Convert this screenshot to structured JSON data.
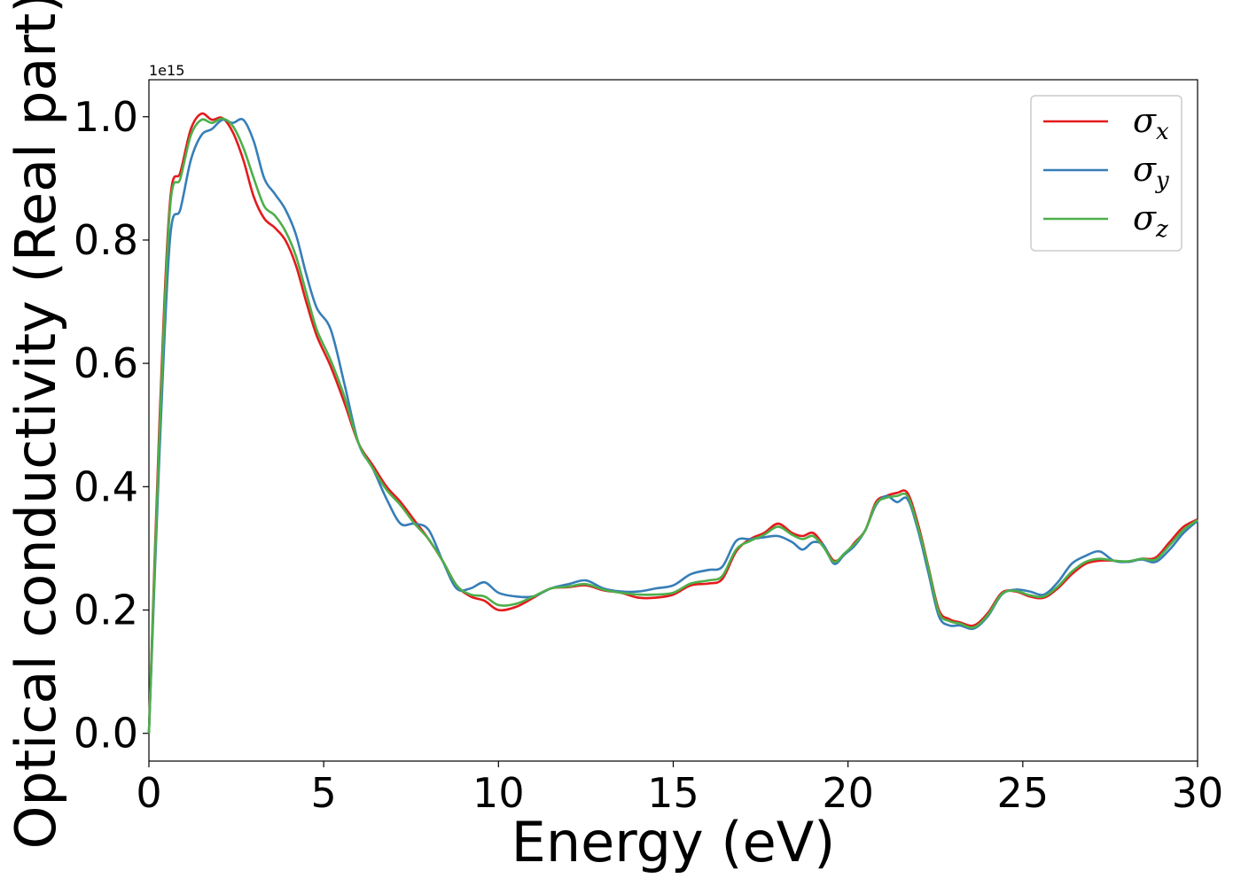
{
  "chart_data": {
    "type": "line",
    "title": "",
    "xlabel": "Energy (eV)",
    "ylabel": "Optical conductivity (Real part)",
    "y_offset_label": "1e15",
    "xlim": [
      0,
      30
    ],
    "ylim": [
      -0.045,
      1.06
    ],
    "x_ticks": [
      "0",
      "5",
      "10",
      "15",
      "20",
      "25",
      "30"
    ],
    "y_ticks": [
      "0.0",
      "0.2",
      "0.4",
      "0.6",
      "0.8",
      "1.0"
    ],
    "grid": false,
    "legend_position": "top-right",
    "x": [
      0,
      0.3,
      0.6,
      0.9,
      1.2,
      1.5,
      1.8,
      2.1,
      2.4,
      2.7,
      3.0,
      3.3,
      3.6,
      3.9,
      4.2,
      4.5,
      4.8,
      5.2,
      5.6,
      6.0,
      6.4,
      6.8,
      7.2,
      7.6,
      8.0,
      8.4,
      8.8,
      9.2,
      9.6,
      10.0,
      10.5,
      11.0,
      11.5,
      12.0,
      12.5,
      13.0,
      13.5,
      14.0,
      14.5,
      15.0,
      15.5,
      16.0,
      16.4,
      16.8,
      17.2,
      17.6,
      18.0,
      18.4,
      18.7,
      19.0,
      19.3,
      19.6,
      19.9,
      20.2,
      20.5,
      20.8,
      21.1,
      21.4,
      21.7,
      22.0,
      22.3,
      22.6,
      22.9,
      23.2,
      23.6,
      24.0,
      24.4,
      24.8,
      25.2,
      25.6,
      26.0,
      26.4,
      26.8,
      27.2,
      27.6,
      28.0,
      28.4,
      28.8,
      29.2,
      29.6,
      30.0
    ],
    "series": [
      {
        "name": "σx",
        "color": "#e41a1c",
        "values": [
          0.0,
          0.5,
          0.86,
          0.91,
          0.98,
          1.005,
          0.995,
          0.998,
          0.975,
          0.93,
          0.87,
          0.835,
          0.82,
          0.8,
          0.76,
          0.7,
          0.645,
          0.595,
          0.535,
          0.47,
          0.435,
          0.4,
          0.375,
          0.345,
          0.315,
          0.28,
          0.24,
          0.222,
          0.215,
          0.2,
          0.205,
          0.22,
          0.235,
          0.237,
          0.24,
          0.232,
          0.228,
          0.22,
          0.22,
          0.225,
          0.24,
          0.243,
          0.25,
          0.295,
          0.315,
          0.325,
          0.34,
          0.325,
          0.32,
          0.325,
          0.305,
          0.28,
          0.29,
          0.31,
          0.33,
          0.375,
          0.385,
          0.39,
          0.39,
          0.34,
          0.27,
          0.2,
          0.185,
          0.18,
          0.175,
          0.195,
          0.228,
          0.23,
          0.222,
          0.22,
          0.235,
          0.258,
          0.275,
          0.28,
          0.28,
          0.278,
          0.283,
          0.285,
          0.31,
          0.335,
          0.347
        ]
      },
      {
        "name": "σy",
        "color": "#377eb8",
        "values": [
          0.0,
          0.45,
          0.8,
          0.85,
          0.93,
          0.97,
          0.98,
          0.995,
          0.99,
          0.995,
          0.96,
          0.9,
          0.875,
          0.85,
          0.81,
          0.745,
          0.69,
          0.655,
          0.565,
          0.47,
          0.43,
          0.38,
          0.34,
          0.34,
          0.33,
          0.28,
          0.235,
          0.235,
          0.245,
          0.228,
          0.222,
          0.222,
          0.235,
          0.242,
          0.248,
          0.235,
          0.23,
          0.23,
          0.235,
          0.24,
          0.258,
          0.265,
          0.27,
          0.312,
          0.315,
          0.318,
          0.32,
          0.31,
          0.298,
          0.31,
          0.305,
          0.275,
          0.29,
          0.305,
          0.33,
          0.37,
          0.385,
          0.375,
          0.38,
          0.33,
          0.26,
          0.19,
          0.175,
          0.175,
          0.17,
          0.19,
          0.225,
          0.233,
          0.23,
          0.225,
          0.245,
          0.275,
          0.288,
          0.295,
          0.28,
          0.278,
          0.282,
          0.278,
          0.298,
          0.325,
          0.345
        ]
      },
      {
        "name": "σz",
        "color": "#4daf4a",
        "values": [
          0.0,
          0.48,
          0.85,
          0.9,
          0.97,
          0.995,
          0.99,
          0.997,
          0.985,
          0.95,
          0.9,
          0.855,
          0.84,
          0.815,
          0.775,
          0.715,
          0.655,
          0.605,
          0.545,
          0.47,
          0.43,
          0.395,
          0.37,
          0.34,
          0.315,
          0.28,
          0.24,
          0.225,
          0.222,
          0.208,
          0.21,
          0.222,
          0.235,
          0.238,
          0.242,
          0.233,
          0.228,
          0.225,
          0.225,
          0.228,
          0.243,
          0.248,
          0.255,
          0.298,
          0.312,
          0.322,
          0.335,
          0.322,
          0.315,
          0.32,
          0.302,
          0.278,
          0.292,
          0.308,
          0.33,
          0.372,
          0.382,
          0.385,
          0.385,
          0.335,
          0.268,
          0.196,
          0.182,
          0.178,
          0.172,
          0.192,
          0.226,
          0.231,
          0.224,
          0.222,
          0.238,
          0.262,
          0.278,
          0.283,
          0.28,
          0.279,
          0.283,
          0.282,
          0.305,
          0.33,
          0.346
        ]
      }
    ]
  }
}
